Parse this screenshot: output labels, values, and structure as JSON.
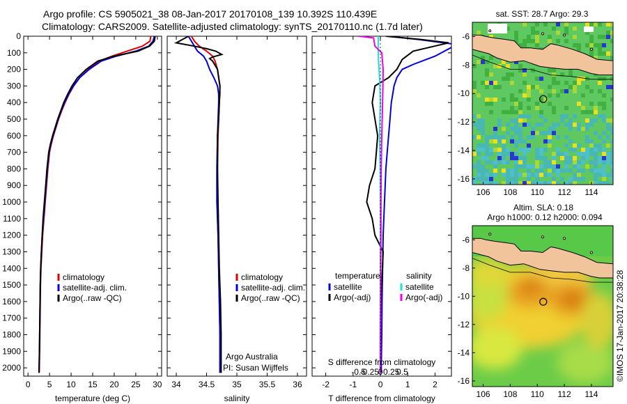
{
  "header": {
    "line1": "Argo profile: CS 5905021_38 08-Jan-2017 20170108_139 10.392S 110.439E",
    "line2": "Climatology: CARS2009. Satellite-adjusted climatology: synTS_20170110.nc (1.7d later)"
  },
  "side_credit": "©IMOS 17-Jan-2017 20:38:28",
  "colors": {
    "climatology": "#dd0000",
    "satellite": "#0000dd",
    "argo": "#000000",
    "temp_satellite": "#0000dd",
    "sal_satellite": "#22dddd",
    "sal_argo": "#ee00ee",
    "land": "#f2c49c"
  },
  "chart_data": [
    {
      "type": "line",
      "panel": "temperature",
      "xlabel": "temperature (deg C)",
      "xlim": [
        -1,
        31
      ],
      "xticks": [
        0,
        5,
        10,
        15,
        20,
        25,
        30
      ],
      "xticklabels": [
        "0",
        "5",
        "10",
        "15",
        "20",
        "25",
        "30"
      ],
      "ylim": [
        2050,
        0
      ],
      "yticks": [
        0,
        100,
        200,
        300,
        400,
        500,
        600,
        700,
        800,
        900,
        1000,
        1100,
        1200,
        1300,
        1400,
        1500,
        1600,
        1700,
        1800,
        1900,
        2000
      ],
      "yticklabels": [
        "0",
        "100",
        "200",
        "300",
        "400",
        "500",
        "600",
        "700",
        "800",
        "900",
        "1000",
        "1100",
        "1200",
        "1300",
        "1400",
        "1500",
        "1600",
        "1700",
        "1800",
        "1900",
        "2000"
      ],
      "legend": [
        "climatology",
        "satellite-adj. clim.",
        "Argo(..raw -QC)"
      ],
      "series": [
        {
          "name": "climatology",
          "color": "#dd0000",
          "x": [
            28.5,
            28.3,
            26.5,
            23,
            19.5,
            16.5,
            14,
            12,
            10.6,
            9.5,
            8.6,
            7.8,
            7.1,
            6.5,
            5.9,
            5.4,
            5,
            4.6,
            4.3,
            4,
            3.7,
            3.4,
            3.2,
            3,
            2.9,
            2.8,
            2.7,
            2.6
          ],
          "y": [
            0,
            30,
            60,
            90,
            120,
            150,
            200,
            250,
            300,
            350,
            400,
            450,
            500,
            550,
            600,
            650,
            700,
            800,
            900,
            1000,
            1100,
            1200,
            1300,
            1400,
            1500,
            1700,
            1900,
            2030
          ]
        },
        {
          "name": "satellite-adj. clim.",
          "color": "#0000dd",
          "x": [
            29.3,
            29,
            28,
            25,
            20.5,
            17,
            14.2,
            12,
            10.5,
            9.4,
            8.5,
            7.7,
            7,
            6.4,
            5.8,
            5.3,
            4.9,
            4.5,
            4.2,
            3.9,
            3.6,
            3.3,
            3.1,
            2.95,
            2.85,
            2.75,
            2.65,
            2.55
          ],
          "y": [
            0,
            30,
            60,
            90,
            120,
            150,
            200,
            250,
            300,
            350,
            400,
            450,
            500,
            550,
            600,
            650,
            700,
            800,
            900,
            1000,
            1100,
            1200,
            1300,
            1400,
            1500,
            1700,
            1900,
            2030
          ]
        },
        {
          "name": "Argo(..raw -QC)",
          "color": "#000000",
          "x": [
            29.5,
            29.3,
            28.2,
            25.5,
            20,
            16.2,
            13.5,
            11.5,
            10.2,
            9.2,
            8.3,
            7.6,
            6.9,
            6.3,
            5.7,
            5.2,
            4.8,
            4.4,
            4.1,
            3.8,
            3.5,
            3.3,
            3.1,
            2.95,
            2.85,
            2.75,
            2.65,
            2.55
          ],
          "y": [
            0,
            30,
            60,
            90,
            120,
            150,
            200,
            250,
            300,
            350,
            400,
            450,
            500,
            550,
            600,
            650,
            700,
            800,
            900,
            1000,
            1100,
            1200,
            1300,
            1400,
            1500,
            1700,
            1900,
            2030
          ]
        }
      ]
    },
    {
      "type": "line",
      "panel": "salinity",
      "xlabel": "salinity",
      "xlim": [
        33.85,
        36.15
      ],
      "xticks": [
        34,
        34.5,
        35,
        35.5,
        36
      ],
      "xticklabels": [
        "34",
        "34.5",
        "35",
        "35.5",
        "36"
      ],
      "ylim": [
        2050,
        0
      ],
      "legend": [
        "climatology",
        "satellite-adj. clim.",
        "Argo(..raw -QC)"
      ],
      "annotations": [
        "Argo Australia",
        "PI: Susan Wijffels"
      ],
      "series": [
        {
          "name": "climatology",
          "color": "#dd0000",
          "x": [
            34.25,
            34.3,
            34.38,
            34.5,
            34.6,
            34.64,
            34.68,
            34.7,
            34.72,
            34.72,
            34.71,
            34.7,
            34.69,
            34.68,
            34.68,
            34.68,
            34.69,
            34.7,
            34.71,
            34.72,
            34.72
          ],
          "y": [
            0,
            30,
            60,
            90,
            120,
            150,
            200,
            250,
            300,
            350,
            400,
            500,
            600,
            800,
            1000,
            1100,
            1200,
            1400,
            1600,
            1800,
            2030
          ]
        },
        {
          "name": "satellite-adj. clim.",
          "color": "#0000dd",
          "x": [
            34.2,
            34.25,
            34.3,
            34.35,
            34.45,
            34.5,
            34.55,
            34.62,
            34.68,
            34.7,
            34.7,
            34.69,
            34.68,
            34.67,
            34.67,
            34.68,
            34.69,
            34.7,
            34.71,
            34.72,
            34.72
          ],
          "y": [
            0,
            30,
            60,
            90,
            120,
            150,
            200,
            250,
            300,
            350,
            400,
            500,
            600,
            800,
            1000,
            1100,
            1200,
            1400,
            1600,
            1800,
            2030
          ]
        },
        {
          "name": "Argo(..raw -QC)",
          "color": "#000000",
          "x": [
            34.2,
            34.1,
            34.0,
            34.3,
            34.5,
            34.65,
            34.75,
            34.6,
            34.55,
            34.6,
            34.68,
            34.7,
            34.72,
            34.71,
            34.7,
            34.68,
            34.68,
            34.69,
            34.7,
            34.71,
            34.73,
            34.74,
            34.74
          ],
          "y": [
            0,
            20,
            40,
            60,
            75,
            90,
            110,
            125,
            135,
            150,
            200,
            250,
            300,
            400,
            500,
            600,
            800,
            1000,
            1200,
            1400,
            1600,
            1800,
            2030
          ]
        }
      ]
    },
    {
      "type": "line",
      "panel": "difference from climatology",
      "xlabel": "T difference from climatology",
      "xlabel_top": "S difference from climatology",
      "xlim": [
        -2.5,
        2.6
      ],
      "xticks": [
        -2,
        -1,
        0,
        1,
        2
      ],
      "xticklabels": [
        "-2",
        "-1",
        "0",
        "1",
        "2"
      ],
      "sticks": [
        -0.5,
        -0.25,
        0,
        0.25,
        0.5
      ],
      "sticklabels": [
        "-0.5",
        "-0.25",
        "0",
        "0.25",
        "0.5"
      ],
      "ylim": [
        2050,
        0
      ],
      "legend_temperature_title": "temperature",
      "legend_salinity_title": "salinity",
      "legend_temperature": [
        "satellite",
        "Argo(-adj)"
      ],
      "legend_salinity": [
        "satellite",
        "Argo(-adj)"
      ],
      "series": [
        {
          "name": "temperature satellite",
          "color": "#0000dd",
          "x": [
            0.3,
            1.4,
            2.8,
            2.0,
            1.2,
            0.8,
            0.6,
            0.5,
            0.45,
            0.4,
            0.35,
            0.3,
            0.25,
            0.2,
            0.15,
            0.1,
            0.08,
            0.06,
            0.05,
            0.04,
            0.03
          ],
          "y": [
            0,
            20,
            50,
            120,
            170,
            200,
            250,
            300,
            350,
            400,
            500,
            600,
            700,
            800,
            1000,
            1200,
            1400,
            1600,
            1800,
            1900,
            2030
          ]
        },
        {
          "name": "temperature Argo(-adj)",
          "color": "#000000",
          "x": [
            0.2,
            1.5,
            2.5,
            1.2,
            0.8,
            0.6,
            0.3,
            -0.2,
            -0.3,
            -0.2,
            -0.1,
            -0.15,
            -0.2,
            -0.4,
            -0.5,
            -0.3,
            -0.2,
            0.1,
            0.05,
            0.0,
            0.0,
            0.0
          ],
          "y": [
            0,
            20,
            40,
            90,
            140,
            200,
            250,
            300,
            400,
            500,
            600,
            700,
            800,
            900,
            1000,
            1100,
            1200,
            1300,
            1500,
            1700,
            1900,
            2030
          ]
        },
        {
          "name": "salinity satellite",
          "color": "#22dddd",
          "x": [
            -0.08,
            -0.08,
            -0.07,
            -0.05,
            -0.02,
            0.0,
            -0.02,
            -0.03,
            -0.01,
            0.0,
            0.0,
            0.0,
            0.0,
            0.0
          ],
          "y": [
            0,
            80,
            150,
            200,
            300,
            400,
            500,
            600,
            800,
            1000,
            1200,
            1500,
            1800,
            2030
          ]
        },
        {
          "name": "salinity Argo(-adj)",
          "color": "#ee00ee",
          "x": [
            -0.8,
            -0.25,
            -0.2,
            0.05,
            0.1,
            0.08,
            0.05,
            0.03,
            0.02,
            0.02,
            0.01,
            0.01,
            0.0,
            0.0
          ],
          "y": [
            0,
            10,
            60,
            100,
            200,
            400,
            600,
            800,
            1000,
            1200,
            1400,
            1600,
            1800,
            2030
          ]
        }
      ]
    },
    {
      "type": "heatmap",
      "panel": "sat. SST map",
      "title": "sat. SST: 28.7  Argo: 29.3",
      "xlim": [
        105.2,
        115.6
      ],
      "ylim": [
        -16.4,
        -5.0
      ],
      "xticks": [
        106,
        108,
        110,
        112,
        114
      ],
      "xticklabels": [
        "106",
        "108",
        "110",
        "112",
        "114"
      ],
      "yticks": [
        -6,
        -8,
        -10,
        -12,
        -14,
        -16
      ],
      "yticklabels": [
        "-6",
        "-8",
        "-10",
        "-12",
        "-14",
        "-16"
      ],
      "marker": [
        110.44,
        -10.39
      ]
    },
    {
      "type": "heatmap",
      "panel": "altimetry SLA map",
      "title": "Altim. SLA: 0.18",
      "subtitle": "Argo h1000: 0.12 h2000: 0.094",
      "xlim": [
        105.2,
        115.6
      ],
      "ylim": [
        -16.4,
        -5.0
      ],
      "xticks": [
        106,
        108,
        110,
        112,
        114
      ],
      "xticklabels": [
        "106",
        "108",
        "110",
        "112",
        "114"
      ],
      "yticks": [
        -6,
        -8,
        -10,
        -12,
        -14,
        -16
      ],
      "yticklabels": [
        "-6",
        "-8",
        "-10",
        "-12",
        "-14",
        "-16"
      ],
      "marker": [
        110.44,
        -10.39
      ]
    }
  ]
}
